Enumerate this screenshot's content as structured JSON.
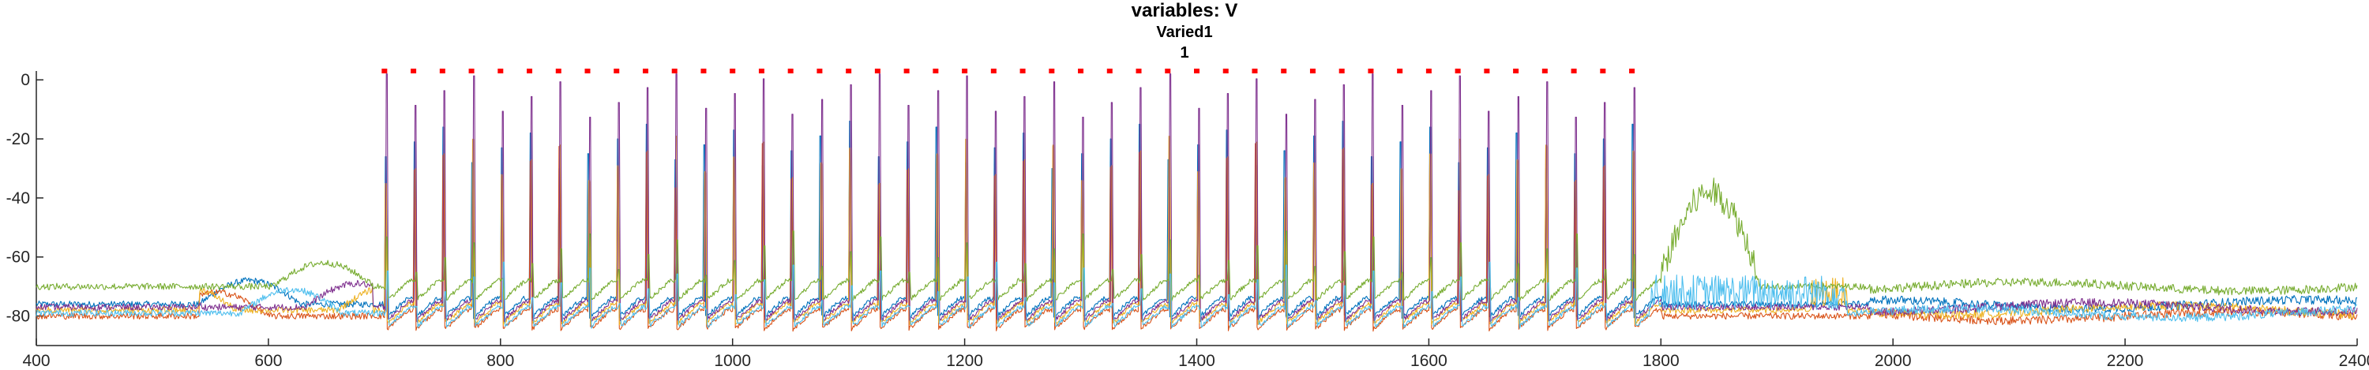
{
  "chart_data": {
    "type": "line",
    "title": "variables: V",
    "subtitle_lines": [
      "Varied1",
      "1"
    ],
    "xlabel": "",
    "ylabel": "",
    "xlim": [
      400,
      2400
    ],
    "ylim": [
      -90,
      3
    ],
    "grid": false,
    "x_ticks": [
      400,
      600,
      800,
      1000,
      1200,
      1400,
      1600,
      1800,
      2000,
      2200,
      2400
    ],
    "y_ticks": [
      0,
      -20,
      -40,
      -60,
      -80
    ],
    "x_tick_labels": [
      "400",
      "600",
      "800",
      "1000",
      "1200",
      "1400",
      "1600",
      "1800",
      "2000",
      "2200",
      "2400"
    ],
    "y_tick_labels": [
      "0",
      "-20",
      "-40",
      "-60",
      "-80"
    ],
    "stimulus_markers": {
      "color": "#ff0000",
      "y": 3,
      "x": [
        700,
        725,
        750,
        775,
        800,
        825,
        850,
        875,
        900,
        925,
        950,
        975,
        1000,
        1025,
        1050,
        1075,
        1100,
        1125,
        1150,
        1175,
        1200,
        1225,
        1250,
        1275,
        1300,
        1325,
        1350,
        1375,
        1400,
        1425,
        1450,
        1475,
        1500,
        1525,
        1550,
        1575,
        1600,
        1625,
        1650,
        1675,
        1700,
        1725,
        1750,
        1775
      ]
    },
    "series": [
      {
        "color": "#0072bd",
        "baseline": -76,
        "spike_peak": -22,
        "burst": "none"
      },
      {
        "color": "#d95319",
        "baseline": -80,
        "spike_peak": -30,
        "burst": "none"
      },
      {
        "color": "#edb120",
        "baseline": -78,
        "spike_peak": -28,
        "burst": "noisy-after-1900"
      },
      {
        "color": "#7e2f8e",
        "baseline": -77,
        "spike_peak": -5,
        "burst": "none"
      },
      {
        "color": "#77ac30",
        "baseline": -70,
        "spike_peak": -60,
        "burst": "depolarized-1800-1880"
      },
      {
        "color": "#4dbeee",
        "baseline": -79,
        "spike_peak": -70,
        "burst": "noisy-1790-1960"
      }
    ]
  }
}
